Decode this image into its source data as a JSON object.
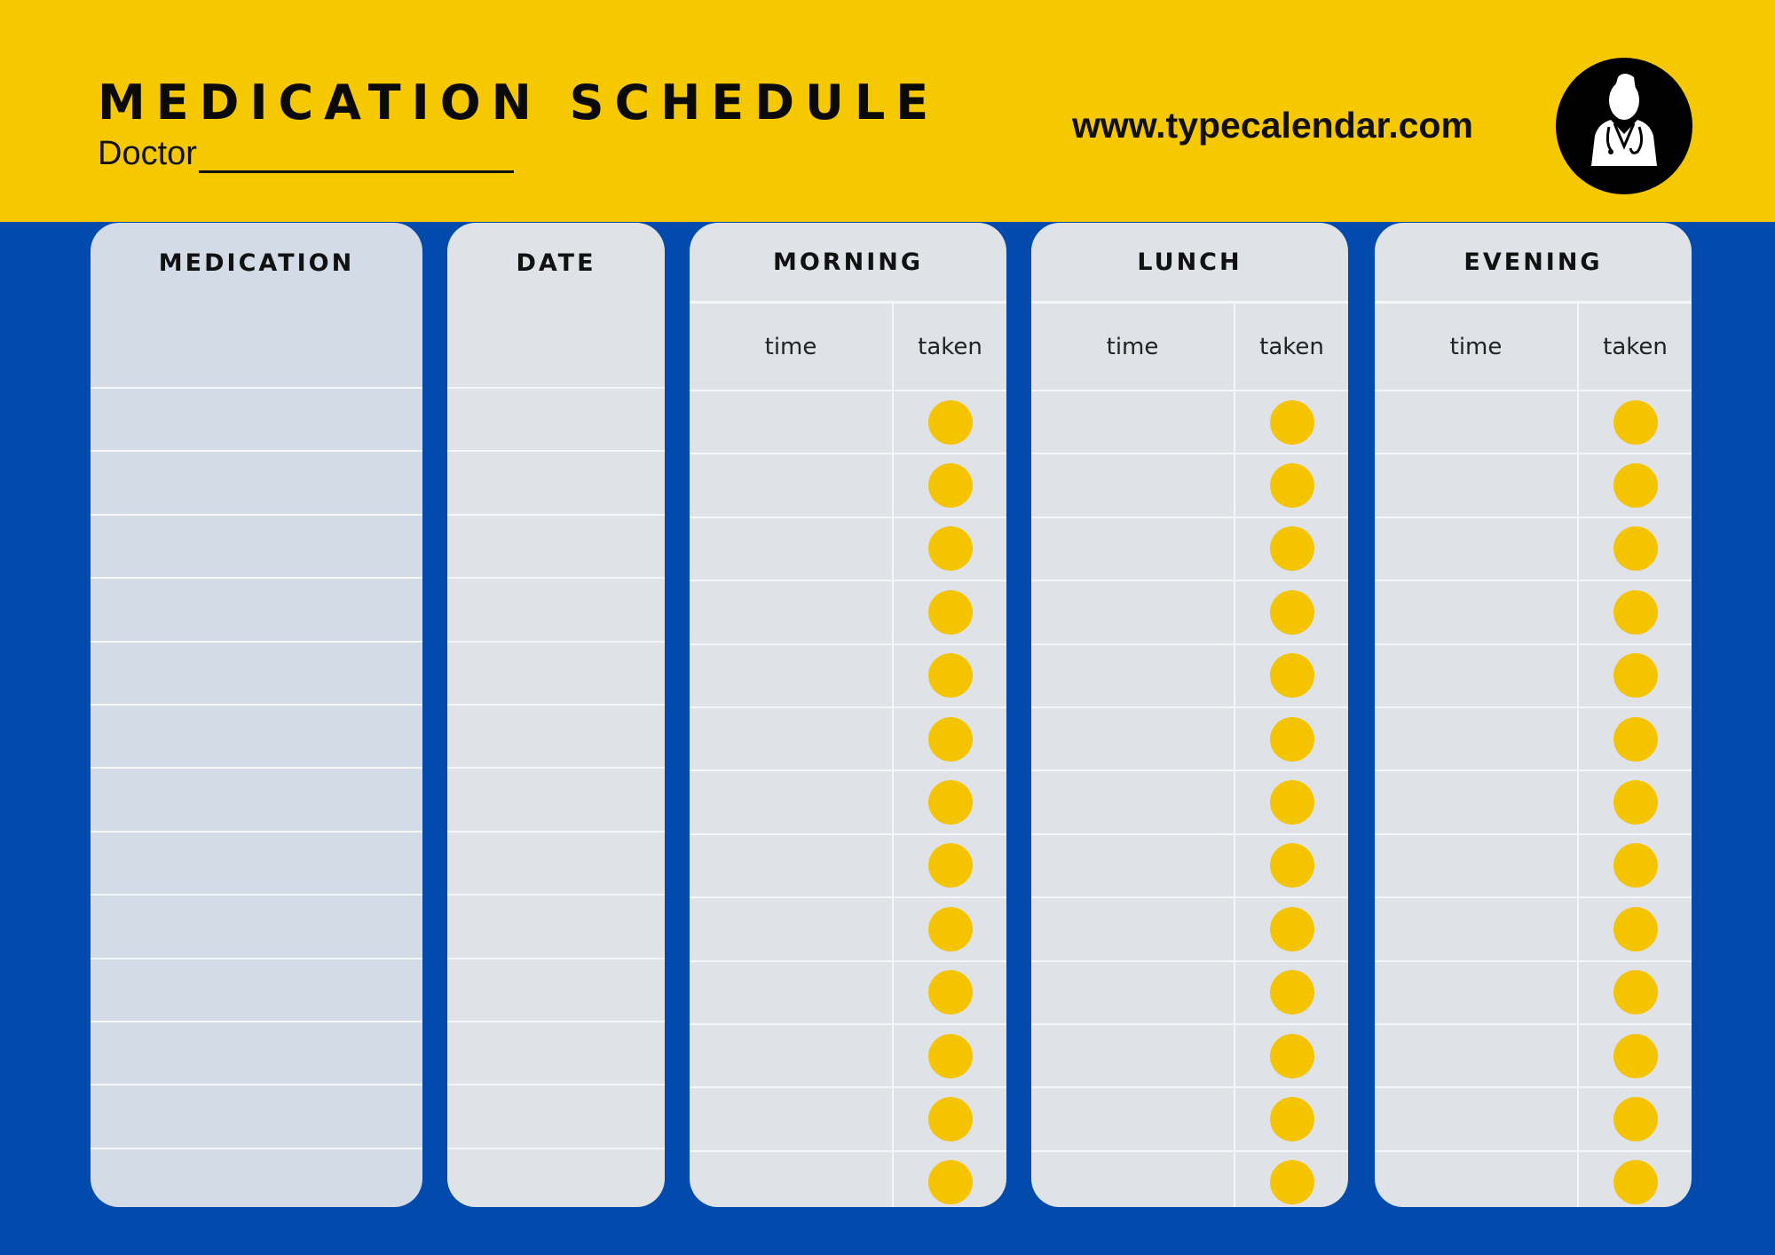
{
  "header": {
    "title": "MEDICATION SCHEDULE",
    "doctor_label": "Doctor",
    "website": "www.typecalendar.com",
    "logo_icon": "doctor-icon"
  },
  "columns": {
    "medication": "MEDICATION",
    "date": "DATE",
    "periods": [
      {
        "label": "MORNING",
        "time_label": "time",
        "taken_label": "taken"
      },
      {
        "label": "LUNCH",
        "time_label": "time",
        "taken_label": "taken"
      },
      {
        "label": "EVENING",
        "time_label": "time",
        "taken_label": "taken"
      }
    ]
  },
  "colors": {
    "yellow": "#F5C800",
    "blue": "#034AAD",
    "panel": "#DFE3E8",
    "dot": "#F5C400"
  }
}
